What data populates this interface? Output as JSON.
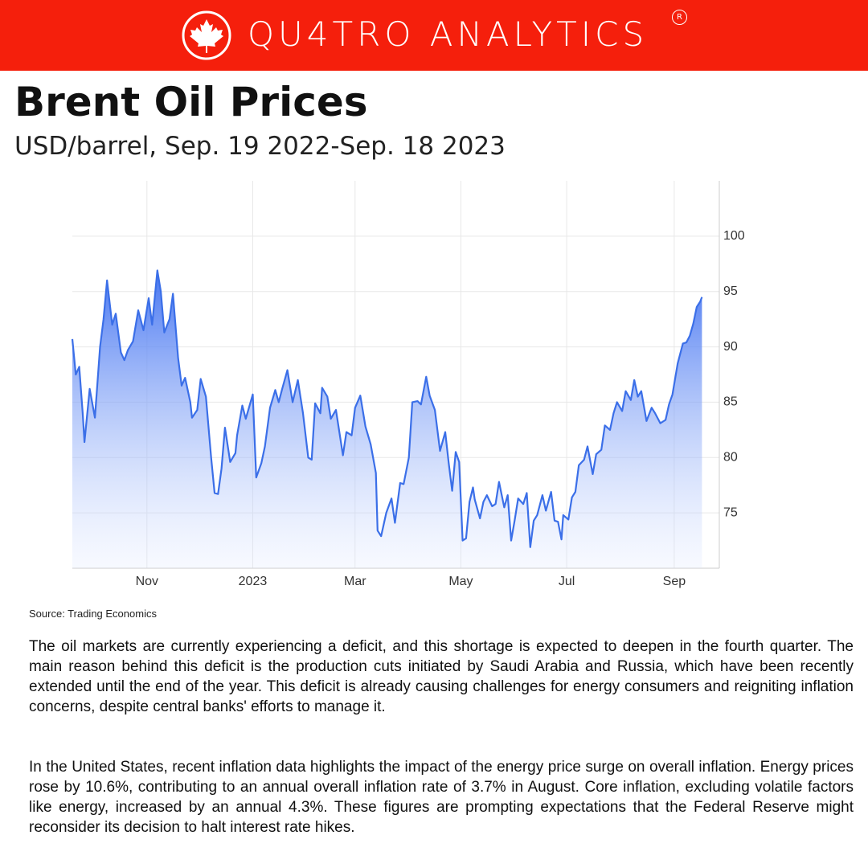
{
  "header": {
    "brand": "QU4TRO ANALYTICS",
    "mark": "R"
  },
  "chart_data": {
    "type": "area",
    "title": "Brent Oil Prices",
    "subtitle": "USD/barrel, Sep. 19 2022-Sep. 18 2023",
    "x": [
      0,
      2,
      4,
      6,
      7,
      10,
      13,
      16,
      18,
      20,
      23,
      25,
      28,
      30,
      32,
      35,
      38,
      41,
      44,
      46,
      49,
      51,
      53,
      56,
      58,
      61,
      63,
      65,
      68,
      69,
      72,
      74,
      77,
      80,
      82,
      84,
      86,
      88,
      91,
      94,
      95,
      98,
      100,
      104,
      106,
      109,
      111,
      114,
      117,
      119,
      121,
      124,
      127,
      130,
      133,
      136,
      138,
      140,
      143,
      144,
      147,
      149,
      152,
      156,
      158,
      161,
      163,
      166,
      169,
      172,
      175,
      176,
      178,
      181,
      184,
      186,
      189,
      191,
      194,
      196,
      199,
      201,
      204,
      206,
      209,
      212,
      215,
      217,
      219,
      221,
      223,
      225,
      227,
      229,
      231,
      232,
      235,
      237,
      239,
      242,
      244,
      246,
      249,
      251,
      253,
      255,
      257,
      260,
      262,
      264,
      266,
      268,
      271,
      273,
      276,
      278,
      280,
      282,
      283,
      286,
      288,
      290,
      292,
      295,
      297,
      300,
      302,
      305,
      307,
      310,
      312,
      314,
      317,
      319,
      322,
      324,
      326,
      328,
      331,
      334,
      336,
      339,
      342,
      344,
      346,
      349,
      352,
      354,
      356,
      358,
      360,
      362,
      363
    ],
    "values": [
      90.7,
      87.5,
      88.2,
      84,
      81.4,
      86.2,
      83.6,
      90,
      92.5,
      96,
      92,
      93,
      89.5,
      88.8,
      89.7,
      90.5,
      93.3,
      91.5,
      94.4,
      92,
      96.9,
      95,
      91.3,
      92.5,
      94.8,
      89,
      86.5,
      87.2,
      85,
      83.6,
      84.3,
      87.1,
      85.5,
      80,
      76.8,
      76.7,
      79,
      82.7,
      79.6,
      80.4,
      82,
      84.7,
      83.5,
      85.7,
      78.2,
      79.5,
      81,
      84.5,
      86.1,
      85,
      86.2,
      87.9,
      85,
      87,
      84,
      80,
      79.8,
      84.9,
      84,
      86.3,
      85.5,
      83.5,
      84.3,
      80.2,
      82.3,
      82,
      84.5,
      85.6,
      82.8,
      81.2,
      78.6,
      73.4,
      72.9,
      75,
      76.3,
      74.1,
      77.7,
      77.6,
      80,
      85,
      85.1,
      84.8,
      87.3,
      85.6,
      84.3,
      80.6,
      82.3,
      79.5,
      77,
      80.5,
      79.6,
      72.5,
      72.7,
      76,
      77.3,
      76.2,
      74.5,
      76,
      76.6,
      75.6,
      75.8,
      77.8,
      75.5,
      76.6,
      72.5,
      74.3,
      76.3,
      75.8,
      76.8,
      71.9,
      74.3,
      74.8,
      76.6,
      75.2,
      76.9,
      74.3,
      74.2,
      72.6,
      74.8,
      74.4,
      76.4,
      76.9,
      79.3,
      79.8,
      81,
      78.5,
      80.3,
      80.7,
      82.9,
      82.5,
      84,
      85,
      84.2,
      86,
      85.2,
      87,
      85.5,
      86,
      83.3,
      84.5,
      84,
      83.1,
      83.4,
      84.8,
      85.7,
      88.5,
      90.3,
      90.4,
      91,
      92.1,
      93.6,
      94.1,
      94.5
    ],
    "color": "#3b6fe8",
    "xlim": [
      0,
      373
    ],
    "xticks": [
      {
        "value": 43,
        "label": "Nov"
      },
      {
        "value": 104,
        "label": "2023"
      },
      {
        "value": 163,
        "label": "Mar"
      },
      {
        "value": 224,
        "label": "May"
      },
      {
        "value": 285,
        "label": "Jul"
      },
      {
        "value": 347,
        "label": "Sep"
      }
    ],
    "ylim": [
      70,
      105
    ],
    "yticks": [
      75,
      80,
      85,
      90,
      95,
      100
    ],
    "grid": true,
    "source": "Source: Trading Economics"
  },
  "paragraphs": [
    "The oil markets are currently experiencing a deficit, and this shortage is expected to deepen in the fourth quarter. The main reason behind this deficit is the production cuts initiated by Saudi Arabia and Russia, which have been recently extended until the end of the year. This deficit is already causing challenges for energy consumers and reigniting inflation concerns, despite central banks' efforts to manage it.",
    "In the United States, recent inflation data highlights the impact of the energy price surge on overall inflation. Energy prices rose by 10.6%, contributing to an annual overall inflation rate of 3.7% in August. Core inflation, excluding volatile factors like energy, increased by an annual 4.3%. These figures are prompting expectations that the Federal Reserve might reconsider its decision to halt interest rate hikes."
  ]
}
